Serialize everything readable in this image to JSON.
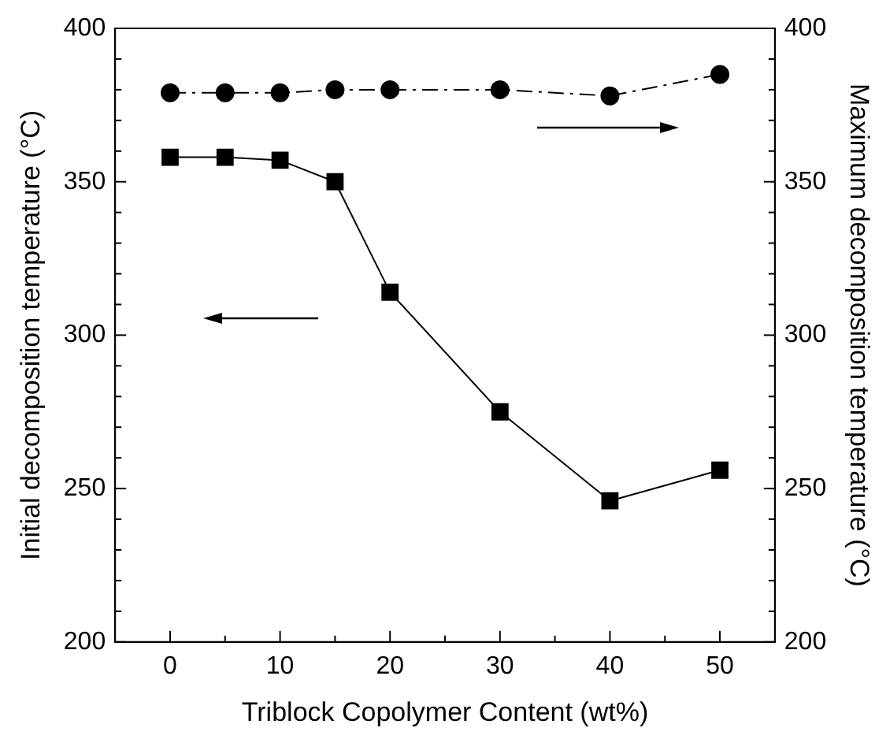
{
  "chart_data": {
    "type": "line",
    "xlabel": "Triblock Copolymer Content (wt%)",
    "ylabel": "Initial decomposition temperature (°C)",
    "y2label": "Maximum decomposition temperature (°C)",
    "x": [
      0,
      5,
      10,
      15,
      20,
      30,
      40,
      50
    ],
    "series": [
      {
        "color": "#000000",
        "marker": "square",
        "line_style": "solid",
        "values": [
          358,
          358,
          357,
          350,
          314,
          275,
          246,
          256
        ]
      },
      {
        "color": "#000000",
        "marker": "circle",
        "line_style": "dashed",
        "axis": "y2",
        "values": [
          379,
          379,
          379,
          380,
          380,
          380,
          378,
          385
        ]
      }
    ],
    "xlim": [
      -5,
      55
    ],
    "xticks": [
      0,
      {
        "value": 5,
        "label": null
      },
      10,
      {
        "value": 15,
        "label": null
      },
      20,
      {
        "value": 25,
        "label": null
      },
      30,
      {
        "value": 35,
        "label": null
      },
      40,
      {
        "value": 45,
        "label": null
      },
      50
    ],
    "ylim": [
      200,
      400
    ],
    "yticks": [
      200,
      {
        "value": 210,
        "label": null
      },
      {
        "value": 220,
        "label": null
      },
      {
        "value": 230,
        "label": null
      },
      {
        "value": 240,
        "label": null
      },
      250,
      {
        "value": 260,
        "label": null
      },
      {
        "value": 270,
        "label": null
      },
      {
        "value": 280,
        "label": null
      },
      {
        "value": 290,
        "label": null
      },
      300,
      {
        "value": 310,
        "label": null
      },
      {
        "value": 320,
        "label": null
      },
      {
        "value": 330,
        "label": null
      },
      {
        "value": 340,
        "label": null
      },
      350,
      {
        "value": 360,
        "label": null
      },
      {
        "value": 370,
        "label": null
      },
      {
        "value": 380,
        "label": null
      },
      {
        "value": 390,
        "label": null
      },
      400
    ],
    "y2lim": [
      200,
      400
    ],
    "y2ticks": [
      200,
      {
        "value": 210,
        "label": null
      },
      {
        "value": 220,
        "label": null
      },
      {
        "value": 230,
        "label": null
      },
      {
        "value": 240,
        "label": null
      },
      250,
      {
        "value": 260,
        "label": null
      },
      {
        "value": 270,
        "label": null
      },
      {
        "value": 280,
        "label": null
      },
      {
        "value": 290,
        "label": null
      },
      300,
      {
        "value": 310,
        "label": null
      },
      {
        "value": 320,
        "label": null
      },
      {
        "value": 330,
        "label": null
      },
      {
        "value": 340,
        "label": null
      },
      350,
      {
        "value": 360,
        "label": null
      },
      {
        "value": 370,
        "label": null
      },
      {
        "value": 380,
        "label": null
      },
      {
        "value": 390,
        "label": null
      },
      400
    ]
  }
}
